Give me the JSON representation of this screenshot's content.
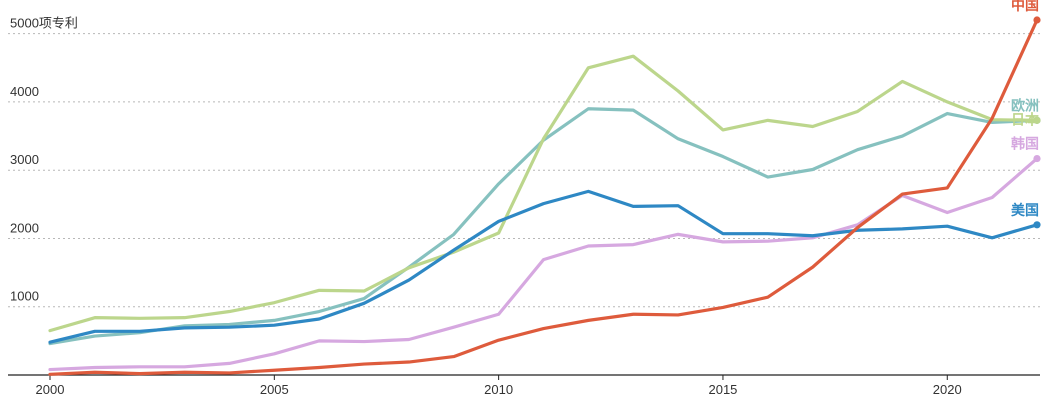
{
  "chart_data": {
    "type": "line",
    "ylabel_unit": "项专利",
    "y_ticks": [
      1000,
      2000,
      3000,
      4000,
      5000
    ],
    "x_ticks": [
      2000,
      2005,
      2010,
      2015,
      2020
    ],
    "xlim": [
      2000,
      2022
    ],
    "ylim": [
      0,
      5200
    ],
    "grid": true,
    "x": [
      2000,
      2001,
      2002,
      2003,
      2004,
      2005,
      2006,
      2007,
      2008,
      2009,
      2010,
      2011,
      2012,
      2013,
      2014,
      2015,
      2016,
      2017,
      2018,
      2019,
      2020,
      2021,
      2022
    ],
    "series": [
      {
        "name": "欧洲",
        "color": "#86c1bf",
        "values": [
          460,
          570,
          620,
          720,
          740,
          800,
          930,
          1120,
          1580,
          2060,
          2800,
          3440,
          3900,
          3880,
          3460,
          3200,
          2900,
          3010,
          3300,
          3500,
          3830,
          3700,
          3730
        ]
      },
      {
        "name": "日本",
        "color": "#bcd68c",
        "values": [
          650,
          840,
          830,
          840,
          930,
          1060,
          1240,
          1230,
          1570,
          1800,
          2080,
          3460,
          4500,
          4670,
          4160,
          3590,
          3730,
          3640,
          3860,
          4300,
          4000,
          3740,
          3730
        ]
      },
      {
        "name": "韩国",
        "color": "#d6a8e0",
        "values": [
          80,
          110,
          120,
          120,
          170,
          310,
          500,
          490,
          520,
          700,
          890,
          1690,
          1890,
          1910,
          2060,
          1950,
          1960,
          2010,
          2200,
          2630,
          2380,
          2600,
          3170
        ]
      },
      {
        "name": "美国",
        "color": "#2e88c4",
        "values": [
          480,
          640,
          640,
          690,
          700,
          730,
          820,
          1050,
          1390,
          1830,
          2250,
          2510,
          2690,
          2470,
          2480,
          2070,
          2070,
          2040,
          2120,
          2140,
          2180,
          2010,
          2200
        ]
      },
      {
        "name": "中国",
        "color": "#de5b3c",
        "values": [
          10,
          40,
          20,
          40,
          30,
          70,
          110,
          160,
          190,
          270,
          510,
          680,
          800,
          890,
          880,
          990,
          1140,
          1580,
          2160,
          2650,
          2740,
          3760,
          5200
        ]
      }
    ]
  }
}
